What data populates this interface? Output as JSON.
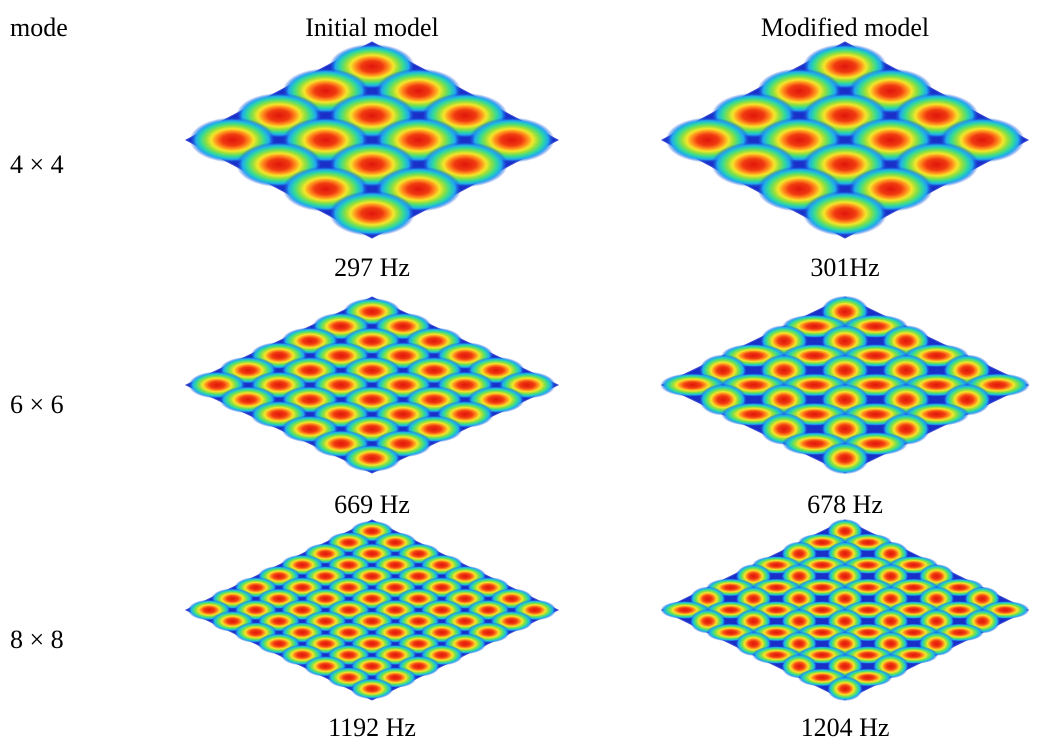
{
  "header": {
    "mode": "mode",
    "initial": "Initial model",
    "modified": "Modified model"
  },
  "rows": [
    {
      "mode": "4 × 4",
      "initial": "297 Hz",
      "modified": "301Hz"
    },
    {
      "mode": "6 × 6",
      "initial": "669 Hz",
      "modified": "678 Hz"
    },
    {
      "mode": "8 × 8",
      "initial": "1192 Hz",
      "modified": "1204 Hz"
    }
  ]
}
